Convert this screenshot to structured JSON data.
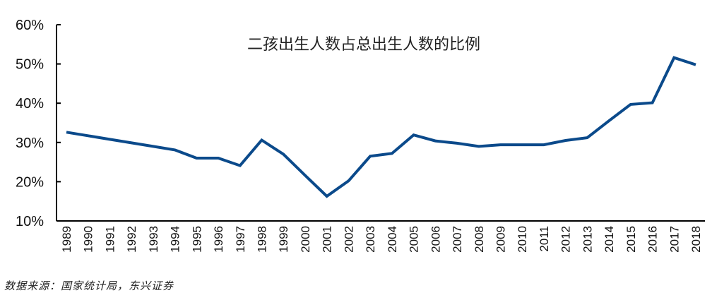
{
  "chart_data": {
    "type": "line",
    "title": "二孩出生人数占总出生人数的比例",
    "xlabel": "",
    "ylabel": "",
    "ylim": [
      10,
      60
    ],
    "yticks": [
      "10%",
      "20%",
      "30%",
      "40%",
      "50%",
      "60%"
    ],
    "grid": false,
    "legend": null,
    "categories": [
      "1989",
      "1990",
      "1991",
      "1992",
      "1993",
      "1994",
      "1995",
      "1996",
      "1997",
      "1998",
      "1999",
      "2000",
      "2001",
      "2002",
      "2003",
      "2004",
      "2005",
      "2006",
      "2007",
      "2008",
      "2009",
      "2010",
      "2011",
      "2012",
      "2013",
      "2014",
      "2015",
      "2016",
      "2017",
      "2018"
    ],
    "series": [
      {
        "name": "二孩出生人数占总出生人数的比例",
        "color": "#0B4A8B",
        "values": [
          32.6,
          31.7,
          30.8,
          29.9,
          29.0,
          28.1,
          26.0,
          26.0,
          24.1,
          30.6,
          27.0,
          21.6,
          16.3,
          20.2,
          26.5,
          27.2,
          31.9,
          30.4,
          29.8,
          29.0,
          29.4,
          29.4,
          29.4,
          30.5,
          31.2,
          35.5,
          39.7,
          40.1,
          51.6,
          49.8
        ]
      }
    ],
    "unit": "%"
  },
  "footer": {
    "source": "数据来源：国家统计局，东兴证券"
  }
}
